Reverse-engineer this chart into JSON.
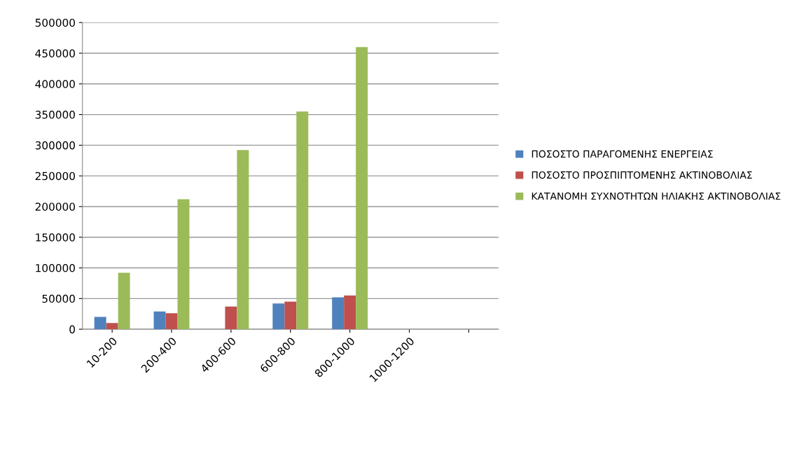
{
  "chart_data": {
    "type": "bar",
    "categories": [
      "10-200",
      "200-400",
      "400-600",
      "600-800",
      "800-1000",
      "1000-1200",
      null
    ],
    "series": [
      {
        "name": "ΠΟΣΟΣΤΟ ΠΑΡΑΓΟΜΕΝΗΣ ΕΝΕΡΓΕΙΑΣ",
        "color": "#4f81bd",
        "values": [
          20000,
          29000,
          null,
          42000,
          52000,
          null,
          null
        ]
      },
      {
        "name": "ΠΟΣΟΣΤΟ ΠΡΟΣΠΙΠΤΟΜΕΝΗΣ ΑΚΤΙΝΟΒΟΛΙΑΣ",
        "color": "#c0504d",
        "values": [
          10000,
          26000,
          37000,
          45000,
          55000,
          null,
          null
        ]
      },
      {
        "name": "ΚΑΤΑΝΟΜΗ ΣΥΧΝΟΤΗΤΩΝ ΗΛΙΑΚΗΣ ΑΚΤΙΝΟΒΟΛΙΑΣ",
        "color": "#9bbb59",
        "values": [
          92000,
          212000,
          292000,
          355000,
          460000,
          null,
          null
        ]
      }
    ],
    "ylim": [
      0,
      500000
    ],
    "yticks": [
      0,
      50000,
      100000,
      150000,
      200000,
      250000,
      300000,
      350000,
      400000,
      450000,
      500000
    ],
    "grid": "y",
    "legend": "right"
  }
}
